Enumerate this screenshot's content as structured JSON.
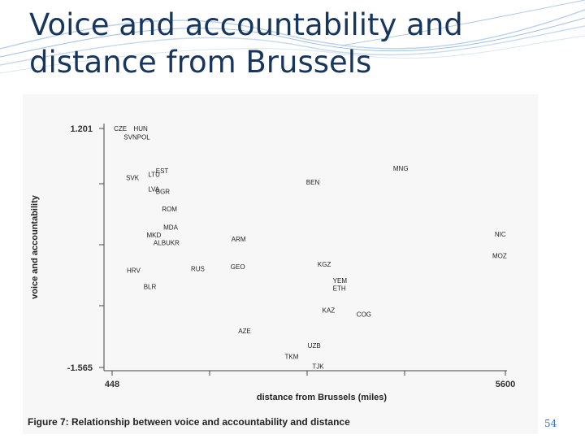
{
  "slide": {
    "title_line1": "Voice and accountability and",
    "title_line2": "distance from Brussels",
    "page_number": "54"
  },
  "figure": {
    "caption": "Figure 7:  Relationship between voice and accountability and distance"
  },
  "chart_data": {
    "type": "scatter",
    "xlabel": "distance from Brussels (miles)",
    "ylabel": "voice and accountability",
    "xlim": [
      448,
      5600
    ],
    "ylim": [
      -1.565,
      1.201
    ],
    "x_tick_labels": [
      "448",
      "5600"
    ],
    "y_tick_labels": [
      "1.201",
      "-1.565"
    ],
    "grid": false,
    "points": [
      {
        "label": "CZE",
        "x": 470,
        "y": 1.201
      },
      {
        "label": "HUN",
        "x": 730,
        "y": 1.201
      },
      {
        "label": "SVNPOL",
        "x": 600,
        "y": 1.1
      },
      {
        "label": "EST",
        "x": 1020,
        "y": 0.71
      },
      {
        "label": "LTU",
        "x": 920,
        "y": 0.67
      },
      {
        "label": "SVK",
        "x": 630,
        "y": 0.63
      },
      {
        "label": "LVA",
        "x": 920,
        "y": 0.5
      },
      {
        "label": "BGR",
        "x": 1020,
        "y": 0.47
      },
      {
        "label": "ROM",
        "x": 1100,
        "y": 0.27
      },
      {
        "label": "MDA",
        "x": 1120,
        "y": 0.06
      },
      {
        "label": "MKD",
        "x": 900,
        "y": -0.03
      },
      {
        "label": "ALBUKR",
        "x": 990,
        "y": -0.12
      },
      {
        "label": "HRV",
        "x": 640,
        "y": -0.44
      },
      {
        "label": "RUS",
        "x": 1480,
        "y": -0.42
      },
      {
        "label": "BLR",
        "x": 860,
        "y": -0.63
      },
      {
        "label": "ARM",
        "x": 2010,
        "y": -0.08
      },
      {
        "label": "GEO",
        "x": 2000,
        "y": -0.4
      },
      {
        "label": "AZE",
        "x": 2100,
        "y": -1.14
      },
      {
        "label": "TKM",
        "x": 2710,
        "y": -1.44
      },
      {
        "label": "UZB",
        "x": 3010,
        "y": -1.31
      },
      {
        "label": "TJK",
        "x": 3070,
        "y": -1.55
      },
      {
        "label": "KGZ",
        "x": 3140,
        "y": -0.37
      },
      {
        "label": "KAZ",
        "x": 3200,
        "y": -0.9
      },
      {
        "label": "YEM",
        "x": 3340,
        "y": -0.56
      },
      {
        "label": "ETH",
        "x": 3340,
        "y": -0.65
      },
      {
        "label": "COG",
        "x": 3650,
        "y": -0.95
      },
      {
        "label": "BEN",
        "x": 2990,
        "y": 0.58
      },
      {
        "label": "MNG",
        "x": 4130,
        "y": 0.74
      },
      {
        "label": "NIC",
        "x": 5460,
        "y": -0.02
      },
      {
        "label": "MOZ",
        "x": 5430,
        "y": -0.27
      }
    ]
  }
}
